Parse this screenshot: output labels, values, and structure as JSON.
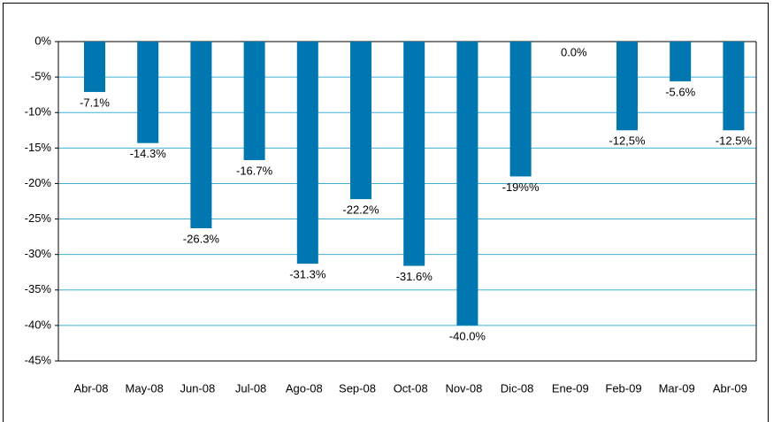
{
  "chart_data": {
    "type": "bar",
    "categories": [
      "Abr-08",
      "May-08",
      "Jun-08",
      "Jul-08",
      "Ago-08",
      "Sep-08",
      "Oct-08",
      "Nov-08",
      "Dic-08",
      "Ene-09",
      "Feb-09",
      "Mar-09",
      "Abr-09"
    ],
    "values": [
      -7.1,
      -14.3,
      -26.3,
      -16.7,
      -31.3,
      -22.2,
      -31.6,
      -40.0,
      -19,
      0.0,
      -12.5,
      -5.6,
      -12.5
    ],
    "value_labels": [
      "-7.1%",
      "-14.3%",
      "-26.3%",
      "-16.7%",
      "-31.3%",
      "-22.2%",
      "-31.6%",
      "-40.0%",
      "-19%%",
      "0.0%",
      "-12,5%",
      "-5.6%",
      "-12.5%"
    ],
    "color": "#0077b0",
    "ylim": [
      -45,
      0
    ],
    "yticks": [
      {
        "value": 0,
        "label": "0%"
      },
      {
        "value": -5,
        "label": "-5%"
      },
      {
        "value": -10,
        "label": "-10%"
      },
      {
        "value": -15,
        "label": "-15%"
      },
      {
        "value": -20,
        "label": "-20%"
      },
      {
        "value": -25,
        "label": "-25%"
      },
      {
        "value": -30,
        "label": "-30%"
      },
      {
        "value": -35,
        "label": "-35%"
      },
      {
        "value": -40,
        "label": "-40%"
      },
      {
        "value": -45,
        "label": "-45%"
      }
    ],
    "grid": true
  }
}
